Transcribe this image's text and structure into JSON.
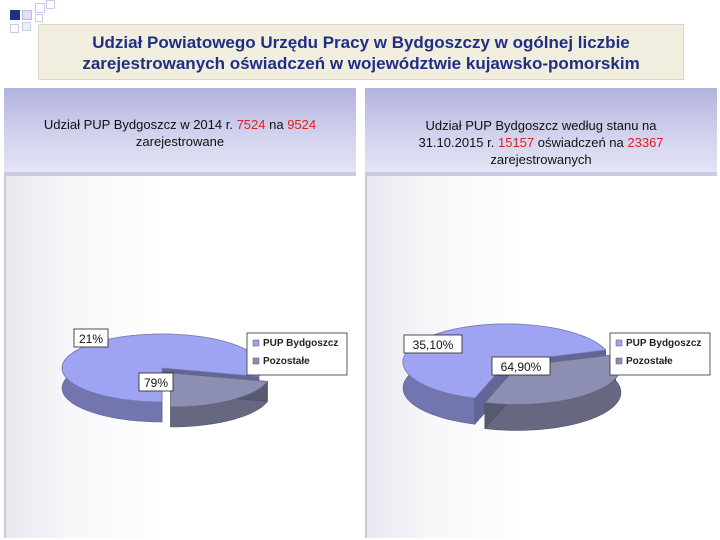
{
  "title": {
    "line1": "Udział Powiatowego Urzędu Pracy w Bydgoszczy w ogólnej liczbie",
    "line2": "zarejestrowanych oświadczeń w województwie kujawsko-pomorskim"
  },
  "left_panel": {
    "sub1_a": "Udział PUP Bydgoszcz w 2014 r. ",
    "sub1_n1": "7524",
    "sub1_b": " na ",
    "sub1_n2": "9524",
    "sub2": "zarejestrowane"
  },
  "right_panel": {
    "sub1": "Udział PUP Bydgoszcz według stanu na",
    "sub2_a": "31.10.2015 r. ",
    "sub2_n1": "15157",
    "sub2_b": " oświadczeń na ",
    "sub2_n2": "23367",
    "sub3": "zarejestrowanych"
  },
  "colors": {
    "title_text": "#1f2f86",
    "pup_slice": "#9ea3f2",
    "other_slice": "#8d8fb2",
    "highlight_number": "#e02020",
    "corner_dark": "#1f2f86",
    "corner_light": "#c8cbe8"
  },
  "chart_data": [
    {
      "type": "pie",
      "style": "3d exploded",
      "categories": [
        "PUP Bydgoszcz",
        "Pozostałe"
      ],
      "values": [
        79,
        21
      ],
      "data_labels": [
        "79%",
        "21%"
      ],
      "legend": [
        "PUP Bydgoszcz",
        "Pozostałe"
      ],
      "legend_placement": "right"
    },
    {
      "type": "pie",
      "style": "3d exploded",
      "categories": [
        "PUP Bydgoszcz",
        "Pozostałe"
      ],
      "values": [
        64.9,
        35.1
      ],
      "data_labels": [
        "64,90%",
        "35,10%"
      ],
      "legend": [
        "PUP Bydgoszcz",
        "Pozostałe"
      ],
      "legend_placement": "right"
    }
  ]
}
